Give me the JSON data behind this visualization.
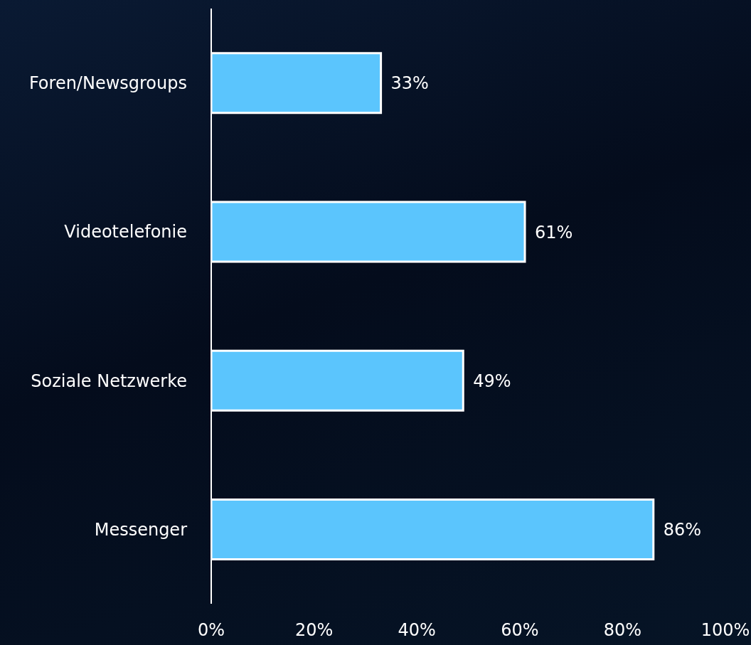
{
  "chart_data": {
    "type": "bar",
    "orientation": "horizontal",
    "categories": [
      "Foren/Newsgroups",
      "Videotelefonie",
      "Soziale Netzwerke",
      "Messenger"
    ],
    "values": [
      33,
      61,
      49,
      86
    ],
    "value_labels": [
      "33%",
      "61%",
      "49%",
      "86%"
    ],
    "color": "#5bc5fd",
    "xlim": [
      0,
      100
    ],
    "xticks": [
      {
        "value": 0,
        "label": "0%"
      },
      {
        "value": 20,
        "label": "20%"
      },
      {
        "value": 40,
        "label": "40%"
      },
      {
        "value": 60,
        "label": "60%"
      },
      {
        "value": 80,
        "label": "80%"
      },
      {
        "value": 100,
        "label": "100%"
      }
    ],
    "grid": false,
    "legend": false
  }
}
